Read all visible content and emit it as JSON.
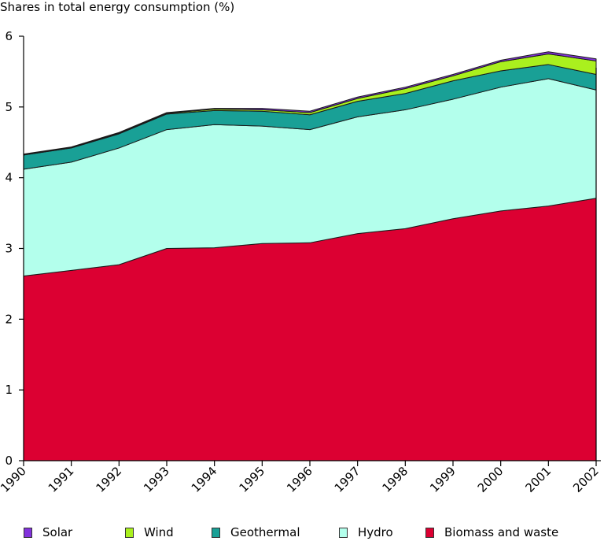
{
  "chart_data": {
    "type": "area",
    "stacked": true,
    "title": "Shares in total energy consumption (%)",
    "xlabel": "",
    "ylabel": "Shares in total energy consumption (%)",
    "x": [
      "1990",
      "1991",
      "1992",
      "1993",
      "1994",
      "1995",
      "1996",
      "1997",
      "1998",
      "1999",
      "2000",
      "2001",
      "2002"
    ],
    "ylim": [
      0,
      6
    ],
    "yticks": [
      "0",
      "1",
      "2",
      "3",
      "4",
      "5",
      "6"
    ],
    "grid": false,
    "legend_position": "bottom",
    "series": [
      {
        "name": "Biomass and waste",
        "color": "#dc0032",
        "values": [
          2.61,
          2.69,
          2.77,
          3.0,
          3.01,
          3.07,
          3.08,
          3.21,
          3.28,
          3.42,
          3.53,
          3.6,
          3.71
        ]
      },
      {
        "name": "Hydro",
        "color": "#b3ffec",
        "values": [
          1.51,
          1.53,
          1.65,
          1.68,
          1.74,
          1.66,
          1.6,
          1.65,
          1.68,
          1.69,
          1.75,
          1.8,
          1.53
        ]
      },
      {
        "name": "Geothermal",
        "color": "#19a096",
        "values": [
          0.2,
          0.2,
          0.2,
          0.22,
          0.2,
          0.21,
          0.21,
          0.22,
          0.23,
          0.26,
          0.23,
          0.2,
          0.22
        ]
      },
      {
        "name": "Wind",
        "color": "#aaf01e",
        "values": [
          0.005,
          0.005,
          0.01,
          0.01,
          0.02,
          0.02,
          0.03,
          0.04,
          0.07,
          0.07,
          0.13,
          0.15,
          0.19
        ]
      },
      {
        "name": "Solar",
        "color": "#8232dc",
        "values": [
          0.01,
          0.01,
          0.01,
          0.01,
          0.01,
          0.02,
          0.02,
          0.02,
          0.02,
          0.02,
          0.02,
          0.03,
          0.03
        ]
      }
    ]
  },
  "legend": {
    "items": [
      {
        "label": "Solar",
        "color": "#8232dc"
      },
      {
        "label": "Wind",
        "color": "#aaf01e"
      },
      {
        "label": "Geothermal",
        "color": "#19a096"
      },
      {
        "label": "Hydro",
        "color": "#b3ffec"
      },
      {
        "label": "Biomass and waste",
        "color": "#dc0032"
      }
    ]
  }
}
